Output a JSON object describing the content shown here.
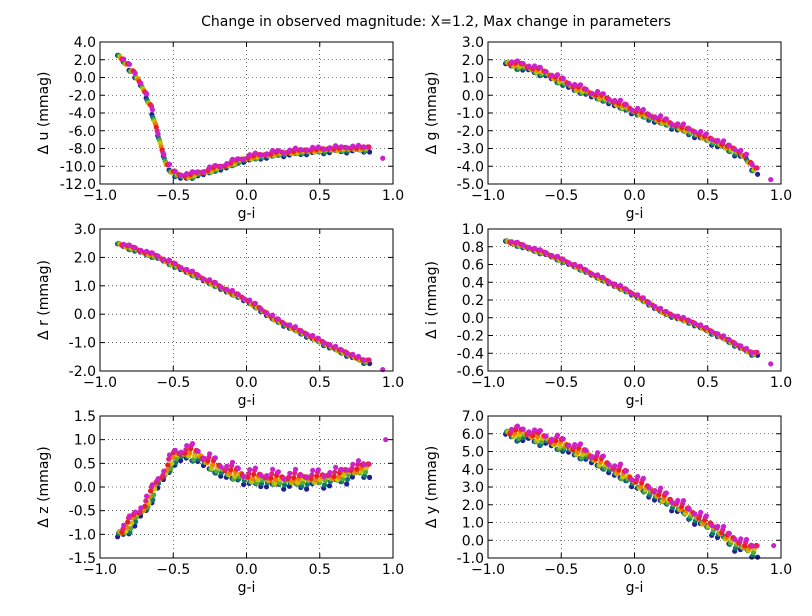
{
  "title": "Change in observed magnitude: X=1.2, Max change in parameters",
  "colors": [
    "#1f1f8f",
    "#0a7a6e",
    "#5aa83a",
    "#c8c400",
    "#f07f00",
    "#e8201c",
    "#e0207a",
    "#cc22cc"
  ],
  "chart_data": [
    {
      "type": "scatter",
      "xlabel": "g-i",
      "ylabel": "Δ u (mmag)",
      "xlim": [
        -1.0,
        1.0
      ],
      "ylim": [
        -12.0,
        4.0
      ],
      "xticks": [
        -1.0,
        -0.5,
        0.0,
        0.5,
        1.0
      ],
      "yticks": [
        -12.0,
        -10.0,
        -8.0,
        -6.0,
        -4.0,
        -2.0,
        0.0,
        2.0,
        4.0
      ],
      "xtick_labels": [
        "−1.0",
        "−0.5",
        "0.0",
        "0.5",
        "1.0"
      ],
      "ytick_labels": [
        "-12.0",
        "-10.0",
        "-8.0",
        "-6.0",
        "-4.0",
        "-2.0",
        "0.0",
        "2.0",
        "4.0"
      ],
      "grid": true,
      "curve": [
        [
          -0.88,
          2.6
        ],
        [
          -0.82,
          1.6
        ],
        [
          -0.75,
          0.0
        ],
        [
          -0.7,
          -1.4
        ],
        [
          -0.65,
          -3.5
        ],
        [
          -0.6,
          -6.8
        ],
        [
          -0.55,
          -9.6
        ],
        [
          -0.5,
          -10.8
        ],
        [
          -0.45,
          -11.1
        ],
        [
          -0.38,
          -11.1
        ],
        [
          -0.3,
          -10.7
        ],
        [
          -0.15,
          -10.0
        ],
        [
          0.0,
          -9.1
        ],
        [
          0.2,
          -8.6
        ],
        [
          0.4,
          -8.3
        ],
        [
          0.6,
          -8.1
        ],
        [
          0.8,
          -8.0
        ]
      ],
      "spread": 0.7,
      "outlier": [
        0.93,
        -9.1
      ]
    },
    {
      "type": "scatter",
      "xlabel": "g-i",
      "ylabel": "Δ g (mmag)",
      "xlim": [
        -1.0,
        1.0
      ],
      "ylim": [
        -5.0,
        3.0
      ],
      "xticks": [
        -1.0,
        -0.5,
        0.0,
        0.5,
        1.0
      ],
      "yticks": [
        -5.0,
        -4.0,
        -3.0,
        -2.0,
        -1.0,
        0.0,
        1.0,
        2.0,
        3.0
      ],
      "xtick_labels": [
        "−1.0",
        "−0.5",
        "0.0",
        "0.5",
        "1.0"
      ],
      "ytick_labels": [
        "-5.0",
        "-4.0",
        "-3.0",
        "-2.0",
        "-1.0",
        "0.0",
        "1.0",
        "2.0",
        "3.0"
      ],
      "grid": true,
      "curve": [
        [
          -0.88,
          1.85
        ],
        [
          -0.7,
          1.5
        ],
        [
          -0.6,
          1.2
        ],
        [
          -0.4,
          0.4
        ],
        [
          -0.2,
          -0.2
        ],
        [
          0.0,
          -0.9
        ],
        [
          0.2,
          -1.5
        ],
        [
          0.4,
          -2.1
        ],
        [
          0.6,
          -2.8
        ],
        [
          0.75,
          -3.4
        ],
        [
          0.82,
          -4.2
        ]
      ],
      "spread": 0.45,
      "outlier": [
        0.93,
        -4.75
      ]
    },
    {
      "type": "scatter",
      "xlabel": "g-i",
      "ylabel": "Δ r (mmag)",
      "xlim": [
        -1.0,
        1.0
      ],
      "ylim": [
        -2.0,
        3.0
      ],
      "xticks": [
        -1.0,
        -0.5,
        0.0,
        0.5,
        1.0
      ],
      "yticks": [
        -2.0,
        -1.0,
        0.0,
        1.0,
        2.0,
        3.0
      ],
      "xtick_labels": [
        "−1.0",
        "−0.5",
        "0.0",
        "0.5",
        "1.0"
      ],
      "ytick_labels": [
        "-2.0",
        "-1.0",
        "0.0",
        "1.0",
        "2.0",
        "3.0"
      ],
      "grid": true,
      "curve": [
        [
          -0.88,
          2.5
        ],
        [
          -0.6,
          2.0
        ],
        [
          -0.4,
          1.5
        ],
        [
          -0.2,
          1.0
        ],
        [
          0.0,
          0.5
        ],
        [
          0.2,
          -0.2
        ],
        [
          0.4,
          -0.7
        ],
        [
          0.6,
          -1.2
        ],
        [
          0.8,
          -1.65
        ]
      ],
      "spread": 0.15,
      "outlier": [
        0.93,
        -1.95
      ]
    },
    {
      "type": "scatter",
      "xlabel": "g-i",
      "ylabel": "Δ i (mmag)",
      "xlim": [
        -1.0,
        1.0
      ],
      "ylim": [
        -0.6,
        1.0
      ],
      "xticks": [
        -1.0,
        -0.5,
        0.0,
        0.5,
        1.0
      ],
      "yticks": [
        -0.6,
        -0.4,
        -0.2,
        0.0,
        0.2,
        0.4,
        0.6,
        0.8,
        1.0
      ],
      "xtick_labels": [
        "−1.0",
        "−0.5",
        "0.0",
        "0.5",
        "1.0"
      ],
      "ytick_labels": [
        "-0.6",
        "-0.4",
        "-0.2",
        "0.0",
        "0.2",
        "0.4",
        "0.6",
        "0.8",
        "1.0"
      ],
      "grid": true,
      "curve": [
        [
          -0.88,
          0.87
        ],
        [
          -0.6,
          0.72
        ],
        [
          -0.4,
          0.58
        ],
        [
          -0.2,
          0.42
        ],
        [
          0.0,
          0.26
        ],
        [
          0.2,
          0.06
        ],
        [
          0.4,
          -0.06
        ],
        [
          0.6,
          -0.22
        ],
        [
          0.8,
          -0.4
        ]
      ],
      "spread": 0.04,
      "outlier": [
        0.93,
        -0.52
      ]
    },
    {
      "type": "scatter",
      "xlabel": "g-i",
      "ylabel": "Δ z (mmag)",
      "xlim": [
        -1.0,
        1.0
      ],
      "ylim": [
        -1.5,
        1.5
      ],
      "xticks": [
        -1.0,
        -0.5,
        0.0,
        0.5,
        1.0
      ],
      "yticks": [
        -1.5,
        -1.0,
        -0.5,
        0.0,
        0.5,
        1.0,
        1.5
      ],
      "xtick_labels": [
        "−1.0",
        "−0.5",
        "0.0",
        "0.5",
        "1.0"
      ],
      "ytick_labels": [
        "-1.5",
        "-1.0",
        "-0.5",
        "0.0",
        "0.5",
        "1.0",
        "1.5"
      ],
      "grid": true,
      "curve": [
        [
          -0.88,
          -1.0
        ],
        [
          -0.8,
          -0.8
        ],
        [
          -0.7,
          -0.45
        ],
        [
          -0.6,
          0.1
        ],
        [
          -0.5,
          0.6
        ],
        [
          -0.4,
          0.75
        ],
        [
          -0.3,
          0.6
        ],
        [
          -0.2,
          0.4
        ],
        [
          0.0,
          0.2
        ],
        [
          0.2,
          0.15
        ],
        [
          0.4,
          0.15
        ],
        [
          0.6,
          0.2
        ],
        [
          0.8,
          0.4
        ]
      ],
      "spread": 0.35,
      "outlier": [
        0.95,
        1.0
      ]
    },
    {
      "type": "scatter",
      "xlabel": "g-i",
      "ylabel": "Δ y (mmag)",
      "xlim": [
        -1.0,
        1.0
      ],
      "ylim": [
        -1.0,
        7.0
      ],
      "xticks": [
        -1.0,
        -0.5,
        0.0,
        0.5,
        1.0
      ],
      "yticks": [
        -1.0,
        0.0,
        1.0,
        2.0,
        3.0,
        4.0,
        5.0,
        6.0,
        7.0
      ],
      "xtick_labels": [
        "−1.0",
        "−0.5",
        "0.0",
        "0.5",
        "1.0"
      ],
      "ytick_labels": [
        "-1.0",
        "0.0",
        "1.0",
        "2.0",
        "3.0",
        "4.0",
        "5.0",
        "6.0",
        "7.0"
      ],
      "grid": true,
      "curve": [
        [
          -0.88,
          6.1
        ],
        [
          -0.7,
          5.9
        ],
        [
          -0.5,
          5.4
        ],
        [
          -0.3,
          4.7
        ],
        [
          -0.1,
          3.8
        ],
        [
          0.1,
          2.8
        ],
        [
          0.3,
          1.9
        ],
        [
          0.5,
          0.9
        ],
        [
          0.7,
          -0.2
        ],
        [
          0.8,
          -0.5
        ]
      ],
      "spread": 0.8,
      "outlier": [
        0.95,
        -0.3
      ]
    }
  ]
}
